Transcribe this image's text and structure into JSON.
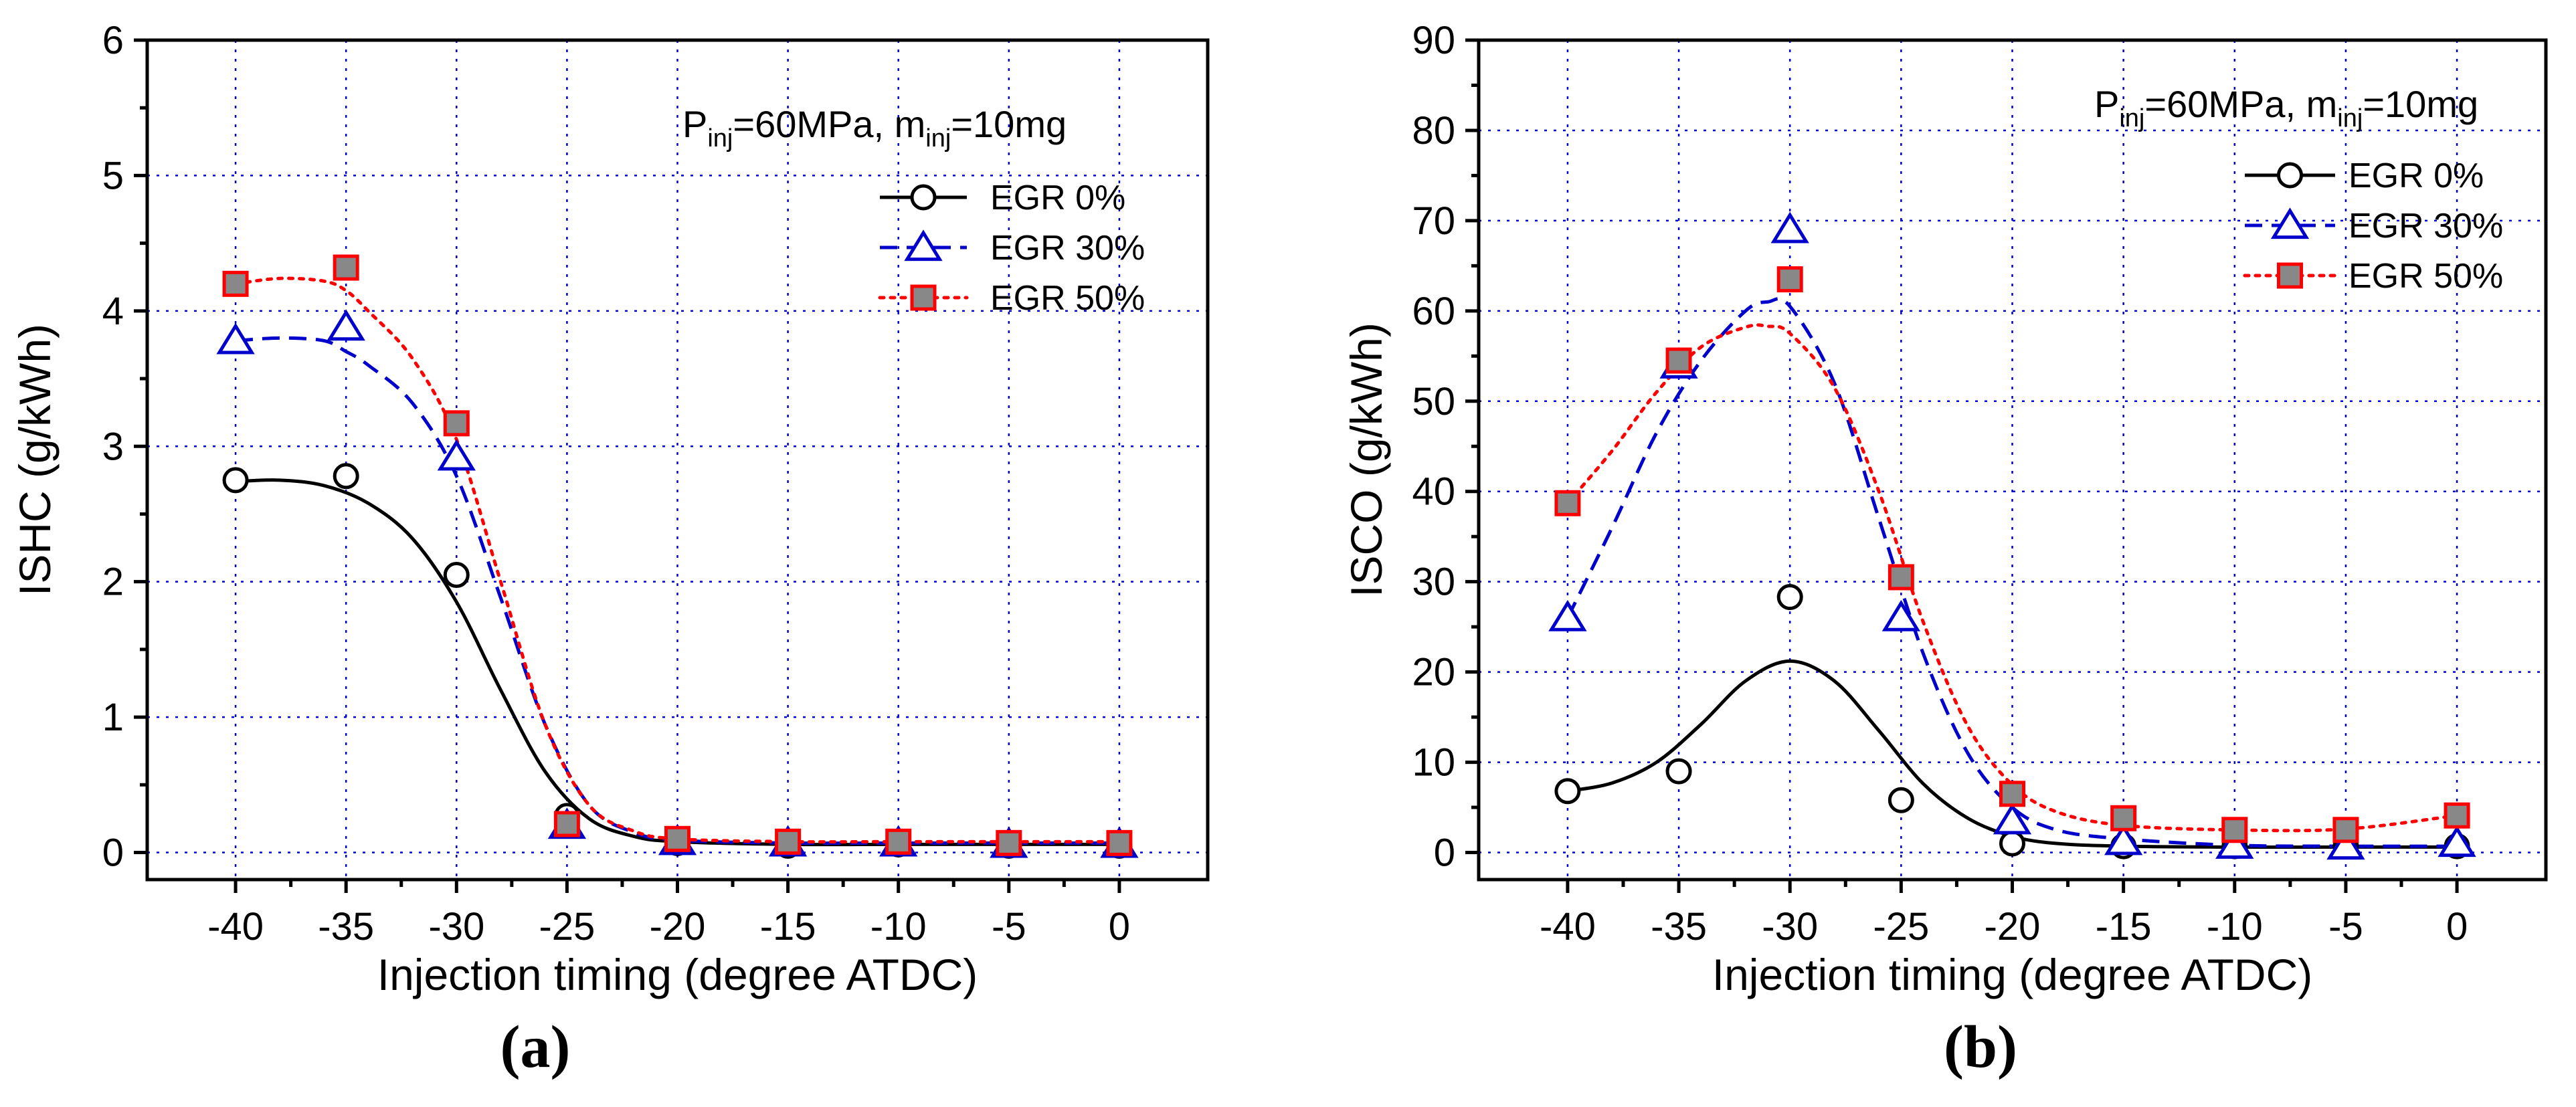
{
  "chart_data": [
    {
      "type": "scatter",
      "panel_label": "(a)",
      "xlabel": "Injection timing (degree ATDC)",
      "ylabel": "ISHC (g/kWh)",
      "xlim": [
        -44,
        4
      ],
      "ylim": [
        -0.2,
        6
      ],
      "xticks": [
        -40,
        -35,
        -30,
        -25,
        -20,
        -15,
        -10,
        -5,
        0
      ],
      "yticks": [
        0,
        1,
        2,
        3,
        4,
        5,
        6
      ],
      "xtick_labels": [
        "-40",
        "-35",
        "-30",
        "-25",
        "-20",
        "-15",
        "-10",
        "-5",
        "0"
      ],
      "ytick_labels": [
        "0",
        "1",
        "2",
        "3",
        "4",
        "5",
        "6"
      ],
      "grid": true,
      "annotation": {
        "p": "P",
        "p_sub": "inj",
        "p_rest": "=60MPa, m",
        "m_sub": "inj",
        "m_rest": "=10mg"
      },
      "legend_position": "top-right",
      "x": [
        -40,
        -35,
        -30,
        -25,
        -20,
        -15,
        -10,
        -5,
        0
      ],
      "series": [
        {
          "name": "EGR 0%",
          "marker": "circle",
          "line": "solid",
          "color": "#000000",
          "values": [
            2.75,
            2.78,
            2.05,
            0.27,
            0.07,
            0.05,
            0.06,
            0.05,
            0.05
          ],
          "fit_x": [
            -40,
            -38,
            -36,
            -34,
            -32,
            -30,
            -28,
            -26,
            -24,
            -22,
            -20,
            -15,
            -10,
            -5,
            0
          ],
          "fit_y": [
            2.74,
            2.75,
            2.71,
            2.58,
            2.32,
            1.85,
            1.2,
            0.6,
            0.25,
            0.12,
            0.08,
            0.06,
            0.06,
            0.06,
            0.06
          ]
        },
        {
          "name": "EGR 30%",
          "marker": "triangle",
          "line": "dashed",
          "color": "#0000cc",
          "values": [
            3.78,
            3.88,
            2.92,
            0.2,
            0.08,
            0.07,
            0.07,
            0.06,
            0.06
          ],
          "fit_x": [
            -40,
            -38,
            -36,
            -35,
            -34,
            -32,
            -30,
            -28,
            -26,
            -24,
            -22,
            -20,
            -15,
            -10,
            -5,
            0
          ],
          "fit_y": [
            3.78,
            3.8,
            3.78,
            3.7,
            3.6,
            3.32,
            2.78,
            1.88,
            0.95,
            0.35,
            0.15,
            0.09,
            0.07,
            0.07,
            0.07,
            0.07
          ]
        },
        {
          "name": "EGR 50%",
          "marker": "square",
          "line": "dotted",
          "color": "#ff0000",
          "values": [
            4.2,
            4.32,
            3.17,
            0.21,
            0.1,
            0.08,
            0.08,
            0.07,
            0.07
          ],
          "fit_x": [
            -40,
            -38,
            -36,
            -35,
            -34,
            -32,
            -30,
            -28,
            -26,
            -24,
            -22,
            -20,
            -15,
            -10,
            -5,
            0
          ],
          "fit_y": [
            4.2,
            4.24,
            4.22,
            4.15,
            4.0,
            3.65,
            3.05,
            2.0,
            0.95,
            0.35,
            0.16,
            0.1,
            0.08,
            0.08,
            0.08,
            0.08
          ]
        }
      ]
    },
    {
      "type": "scatter",
      "panel_label": "(b)",
      "xlabel": "Injection timing (degree ATDC)",
      "ylabel": "ISCO (g/kWh)",
      "xlim": [
        -44,
        4
      ],
      "ylim": [
        -3,
        90
      ],
      "xticks": [
        -40,
        -35,
        -30,
        -25,
        -20,
        -15,
        -10,
        -5,
        0
      ],
      "yticks": [
        0,
        10,
        20,
        30,
        40,
        50,
        60,
        70,
        80,
        90
      ],
      "xtick_labels": [
        "-40",
        "-35",
        "-30",
        "-25",
        "-20",
        "-15",
        "-10",
        "-5",
        "0"
      ],
      "ytick_labels": [
        "0",
        "10",
        "20",
        "30",
        "40",
        "50",
        "60",
        "70",
        "80",
        "90"
      ],
      "grid": true,
      "annotation": {
        "p": "P",
        "p_sub": "inj",
        "p_rest": "=60MPa, m",
        "m_sub": "inj",
        "m_rest": "=10mg"
      },
      "legend_position": "top-right",
      "x": [
        -40,
        -35,
        -30,
        -25,
        -20,
        -15,
        -10,
        -5,
        0
      ],
      "series": [
        {
          "name": "EGR 0%",
          "marker": "circle",
          "line": "solid",
          "color": "#000000",
          "values": [
            6.8,
            9.0,
            28.3,
            5.8,
            1.0,
            0.7,
            0.7,
            0.7,
            0.7
          ],
          "fit_x": [
            -40,
            -38,
            -36,
            -34,
            -32,
            -30,
            -28,
            -26,
            -24,
            -22,
            -20,
            -18,
            -15,
            -10,
            -5,
            0
          ],
          "fit_y": [
            6.8,
            7.7,
            10.0,
            14.2,
            19.0,
            21.2,
            19.0,
            13.5,
            7.6,
            3.8,
            1.8,
            1.0,
            0.7,
            0.6,
            0.6,
            0.6
          ]
        },
        {
          "name": "EGR 30%",
          "marker": "triangle",
          "line": "dashed",
          "color": "#0000cc",
          "values": [
            26,
            54,
            69,
            26,
            3.5,
            1.2,
            0.8,
            0.7,
            1.0
          ],
          "fit_x": [
            -40,
            -38,
            -36,
            -34,
            -32,
            -31,
            -30,
            -28,
            -26,
            -24,
            -22,
            -20,
            -18,
            -15,
            -10,
            -5,
            0
          ],
          "fit_y": [
            26,
            36,
            46.5,
            54.5,
            60,
            61,
            60.5,
            52,
            37,
            22,
            11,
            5,
            2.5,
            1.5,
            0.8,
            0.7,
            0.7
          ]
        },
        {
          "name": "EGR 50%",
          "marker": "square",
          "line": "dotted",
          "color": "#ff0000",
          "values": [
            38.7,
            54.5,
            63.5,
            30.5,
            6.5,
            3.8,
            2.5,
            2.5,
            4.1
          ],
          "fit_x": [
            -40,
            -38,
            -36,
            -34,
            -32,
            -31,
            -30,
            -28,
            -26,
            -24,
            -22,
            -20,
            -18,
            -15,
            -10,
            -5,
            0
          ],
          "fit_y": [
            38.7,
            44.5,
            51,
            56,
            58.2,
            58.3,
            57.5,
            51.5,
            40,
            25.5,
            14,
            7.5,
            4.5,
            3.0,
            2.5,
            2.6,
            4.1
          ]
        }
      ]
    }
  ]
}
